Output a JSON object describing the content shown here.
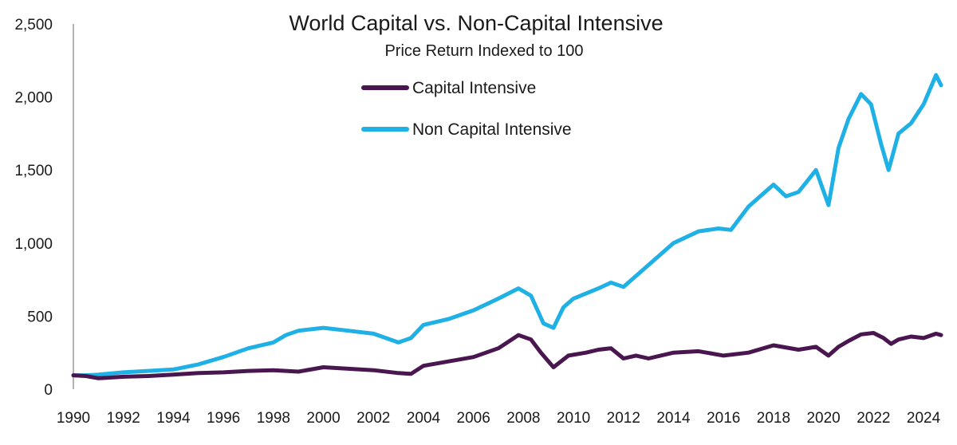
{
  "chart_data": {
    "type": "line",
    "title": "World Capital vs. Non-Capital Intensive",
    "subtitle": "Price Return Indexed to 100",
    "xlabel": "",
    "ylabel": "",
    "xlim": [
      1990,
      2024.7
    ],
    "ylim": [
      0,
      2500
    ],
    "x_ticks": [
      "1990",
      "1992",
      "1994",
      "1996",
      "1998",
      "2000",
      "2002",
      "2004",
      "2006",
      "2008",
      "2010",
      "2012",
      "2014",
      "2016",
      "2018",
      "2020",
      "2022",
      "2024"
    ],
    "y_ticks": [
      "0",
      "500",
      "1,000",
      "1,500",
      "2,000",
      "2,500"
    ],
    "grid": false,
    "legend_position": "top-center",
    "series": [
      {
        "name": "Capital Intensive",
        "color": "#4a1650",
        "x": [
          1990,
          1990.5,
          1991,
          1992,
          1993,
          1994,
          1995,
          1996,
          1997,
          1998,
          1999,
          2000,
          2001,
          2002,
          2003,
          2003.5,
          2004,
          2005,
          2006,
          2007,
          2007.8,
          2008.3,
          2008.7,
          2009.2,
          2009.8,
          2010.5,
          2011,
          2011.5,
          2012,
          2012.5,
          2013,
          2014,
          2015,
          2016,
          2017,
          2018,
          2019,
          2019.7,
          2020.2,
          2020.6,
          2021,
          2021.5,
          2022,
          2022.4,
          2022.7,
          2023,
          2023.5,
          2024,
          2024.5,
          2024.7
        ],
        "values": [
          95,
          90,
          75,
          85,
          90,
          100,
          110,
          115,
          125,
          130,
          120,
          150,
          140,
          130,
          110,
          105,
          160,
          190,
          220,
          280,
          370,
          340,
          250,
          150,
          230,
          250,
          270,
          280,
          210,
          230,
          210,
          250,
          260,
          230,
          250,
          300,
          270,
          290,
          230,
          290,
          330,
          375,
          385,
          350,
          310,
          340,
          360,
          350,
          380,
          370
        ]
      },
      {
        "name": "Non Capital Intensive",
        "color": "#1fb1e6",
        "x": [
          1990,
          1990.5,
          1991,
          1992,
          1993,
          1994,
          1995,
          1996,
          1997,
          1998,
          1998.5,
          1999,
          2000,
          2001,
          2002,
          2003,
          2003.5,
          2004,
          2005,
          2006,
          2007,
          2007.8,
          2008.3,
          2008.8,
          2009.2,
          2009.6,
          2010,
          2011,
          2011.5,
          2012,
          2013,
          2014,
          2015,
          2015.8,
          2016.3,
          2017,
          2018,
          2018.5,
          2019,
          2019.7,
          2020.2,
          2020.6,
          2021,
          2021.5,
          2021.9,
          2022.3,
          2022.6,
          2023,
          2023.5,
          2024,
          2024.5,
          2024.7
        ],
        "values": [
          95,
          95,
          100,
          115,
          125,
          135,
          170,
          220,
          280,
          320,
          370,
          400,
          420,
          400,
          380,
          320,
          350,
          440,
          480,
          540,
          620,
          690,
          640,
          450,
          420,
          560,
          620,
          690,
          730,
          700,
          850,
          1000,
          1080,
          1100,
          1090,
          1250,
          1400,
          1320,
          1350,
          1500,
          1260,
          1650,
          1850,
          2020,
          1950,
          1680,
          1500,
          1750,
          1820,
          1950,
          2150,
          2080
        ]
      }
    ]
  }
}
